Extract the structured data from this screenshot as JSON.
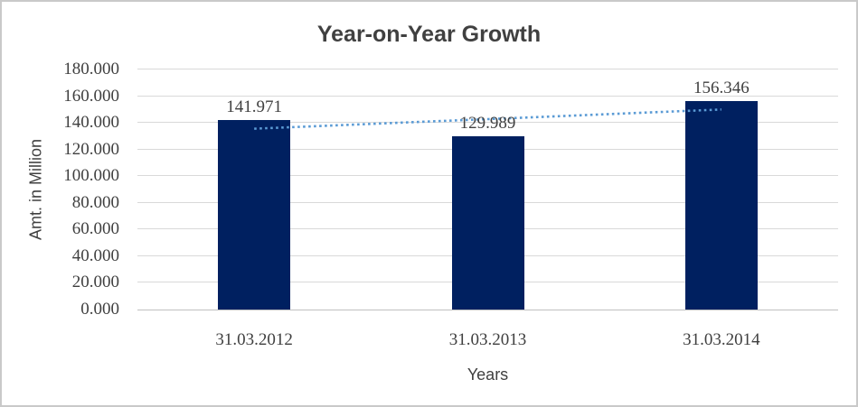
{
  "chart_data": {
    "type": "bar",
    "title": "Year-on-Year Growth",
    "xlabel": "Years",
    "ylabel": "Amt. in Million",
    "categories": [
      "31.03.2012",
      "31.03.2013",
      "31.03.2014"
    ],
    "values": [
      141.971,
      129.989,
      156.346
    ],
    "value_labels": [
      "141.971",
      "129.989",
      "156.346"
    ],
    "ylim": [
      0,
      180
    ],
    "ytick_step": 20,
    "ytick_labels": [
      "0.000",
      "20.000",
      "40.000",
      "60.000",
      "80.000",
      "100.000",
      "120.000",
      "140.000",
      "160.000",
      "180.000"
    ],
    "grid": true,
    "legend": "none",
    "bar_color": "#002060",
    "trendline": {
      "style": "dotted",
      "color": "#5b9bd5",
      "start_value": 135.6,
      "end_value": 150.0
    }
  }
}
